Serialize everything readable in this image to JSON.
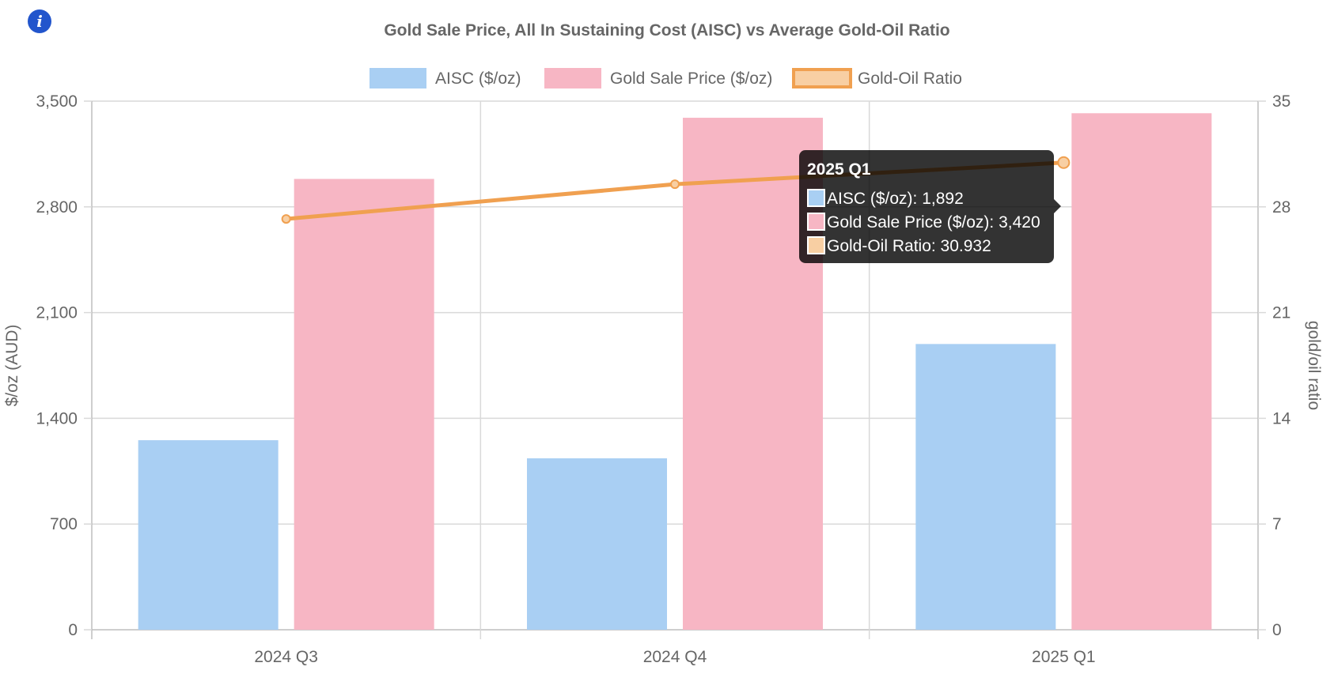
{
  "info_icon": {
    "name": "info-icon",
    "glyph": "i",
    "color": "#2255cc"
  },
  "chart_data": {
    "type": "bar",
    "title": "Gold Sale Price, All In Sustaining Cost (AISC) vs Average Gold-Oil Ratio",
    "categories": [
      "2024 Q3",
      "2024 Q4",
      "2025 Q1"
    ],
    "series": [
      {
        "name": "AISC ($/oz)",
        "type": "bar",
        "axis": "left",
        "values": [
          1255,
          1135,
          1892
        ],
        "color": "#a9cff3",
        "border": "#8ec0f0"
      },
      {
        "name": "Gold Sale Price ($/oz)",
        "type": "bar",
        "axis": "left",
        "values": [
          2985,
          3390,
          3420
        ],
        "color": "#f7b6c4",
        "border": "#f49ab0"
      },
      {
        "name": "Gold-Oil Ratio",
        "type": "line",
        "axis": "right",
        "values": [
          27.2,
          29.5,
          30.932
        ],
        "color": "#f0a050",
        "fill": "#f8cfa3"
      }
    ],
    "y_left": {
      "label": "$/oz (AUD)",
      "min": 0,
      "max": 3500,
      "ticks": [
        0,
        700,
        1400,
        2100,
        2800,
        3500
      ],
      "tick_labels": [
        "0",
        "700",
        "1,400",
        "2,100",
        "2,800",
        "3,500"
      ]
    },
    "y_right": {
      "label": "gold/oil ratio",
      "min": 0,
      "max": 35,
      "ticks": [
        0,
        7,
        14,
        21,
        28,
        35
      ],
      "tick_labels": [
        "0",
        "7",
        "14",
        "21",
        "28",
        "35"
      ]
    },
    "legend_position": "top",
    "grid": true
  },
  "tooltip": {
    "title": "2025 Q1",
    "rows": [
      {
        "label": "AISC ($/oz): 1,892",
        "color": "#a9cff3",
        "border": "#5aa0e0"
      },
      {
        "label": "Gold Sale Price ($/oz): 3,420",
        "color": "#f7b6c4",
        "border": "#e05a7a"
      },
      {
        "label": "Gold-Oil Ratio: 30.932",
        "color": "#f8cfa3",
        "border": "#e08830"
      }
    ],
    "category_index": 2
  }
}
